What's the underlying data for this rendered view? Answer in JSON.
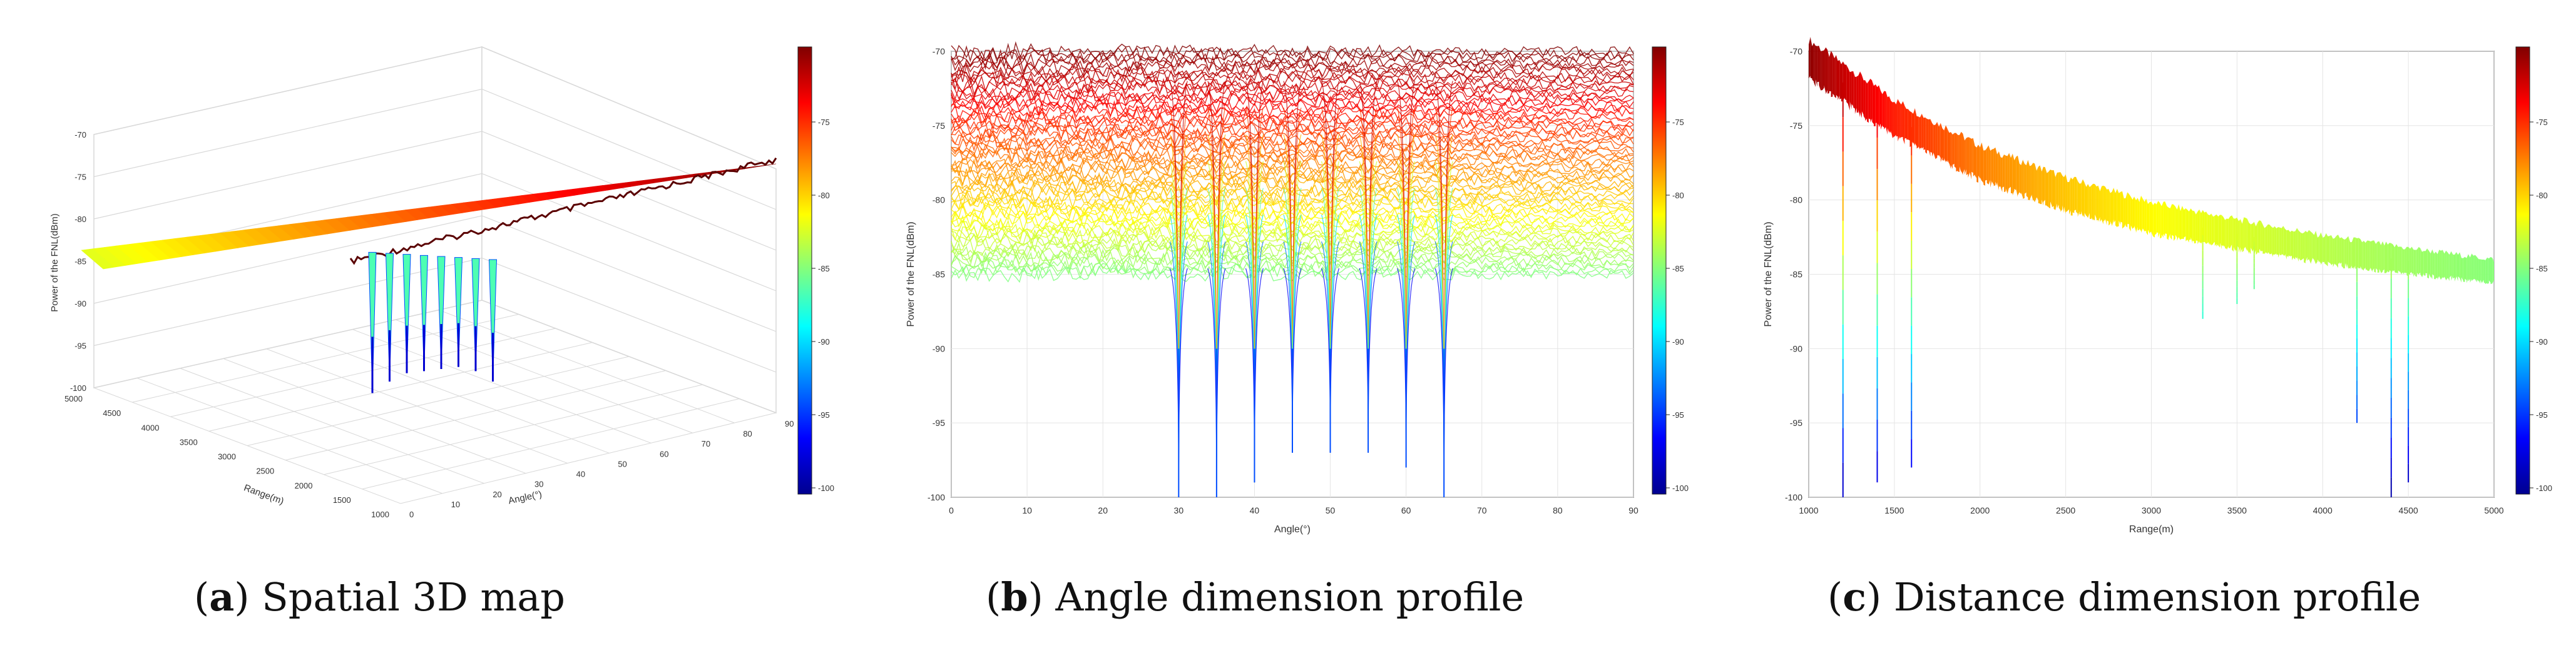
{
  "figures": [
    {
      "caption_label": "a",
      "caption_text": "Spatial 3D map",
      "chart_data": {
        "type": "surface3d",
        "title": "",
        "xlabel": "Angle(°)",
        "ylabel": "Range(m)",
        "zlabel": "Power of the FNL(dBm)",
        "x_ticks": [
          "0",
          "10",
          "20",
          "30",
          "40",
          "50",
          "60",
          "70",
          "80",
          "90"
        ],
        "y_ticks": [
          "1000",
          "1500",
          "2000",
          "2500",
          "3000",
          "3500",
          "4000",
          "4500",
          "5000"
        ],
        "z_ticks": [
          "-70",
          "-75",
          "-80",
          "-85",
          "-90",
          "-95",
          "-100"
        ],
        "xlim": [
          0,
          90
        ],
        "ylim": [
          1000,
          5000
        ],
        "zlim": [
          -100,
          -70
        ],
        "colorbar_ticks": [
          "-75",
          "-80",
          "-85",
          "-90",
          "-95",
          "-100"
        ],
        "notch_angles": [
          30,
          35,
          40,
          45,
          50,
          55,
          60,
          65
        ],
        "notch_depths": [
          -99,
          -95,
          -92,
          -91,
          -90,
          -89,
          -90,
          -93
        ]
      }
    },
    {
      "caption_label": "b",
      "caption_text": "Angle dimension profile",
      "chart_data": {
        "type": "line",
        "title": "",
        "xlabel": "Angle(°)",
        "ylabel": "Power of the FNL(dBm)",
        "x_ticks": [
          "0",
          "10",
          "20",
          "30",
          "40",
          "50",
          "60",
          "70",
          "80",
          "90"
        ],
        "y_ticks": [
          "-70",
          "-75",
          "-80",
          "-85",
          "-90",
          "-95",
          "-100"
        ],
        "xlim": [
          0,
          90
        ],
        "ylim": [
          -100,
          -70
        ],
        "colorbar_ticks": [
          "-75",
          "-80",
          "-85",
          "-90",
          "-95",
          "-100"
        ],
        "notch_angles": [
          30,
          35,
          40,
          45,
          50,
          55,
          60,
          65
        ],
        "notch_min": [
          -100,
          -100,
          -99,
          -97,
          -97,
          -97,
          -98,
          -100
        ],
        "envelope_top": -70,
        "envelope_bottom": -85
      }
    },
    {
      "caption_label": "c",
      "caption_text": "Distance dimension profile",
      "chart_data": {
        "type": "line",
        "title": "",
        "xlabel": "Range(m)",
        "ylabel": "Power of the FNL(dBm)",
        "x_ticks": [
          "1000",
          "1500",
          "2000",
          "2500",
          "3000",
          "3500",
          "4000",
          "4500",
          "5000"
        ],
        "y_ticks": [
          "-70",
          "-75",
          "-80",
          "-85",
          "-90",
          "-95",
          "-100"
        ],
        "xlim": [
          1000,
          5000
        ],
        "ylim": [
          -100,
          -70
        ],
        "colorbar_ticks": [
          "-75",
          "-80",
          "-85",
          "-90",
          "-95",
          "-100"
        ],
        "curve_x": [
          1000,
          1500,
          2000,
          2500,
          3000,
          3500,
          4000,
          4500,
          5000
        ],
        "curve_y": [
          -70.5,
          -74.5,
          -77.5,
          -79.6,
          -81.2,
          -82.3,
          -83.3,
          -84.1,
          -84.8
        ],
        "spike_ranges": [
          1200,
          1400,
          1600,
          3300,
          3500,
          3600,
          4200,
          4400,
          4500
        ],
        "spike_depths": [
          -100,
          -99,
          -98,
          -88,
          -87,
          -86,
          -95,
          -100,
          -99
        ]
      }
    }
  ]
}
